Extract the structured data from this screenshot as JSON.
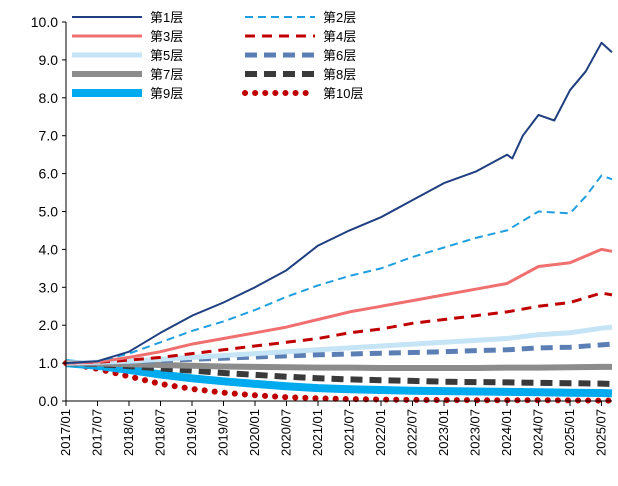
{
  "chart_data": {
    "type": "line",
    "title": "",
    "xlabel": "",
    "ylabel": "",
    "ylim": [
      0,
      10
    ],
    "y_ticks": [
      "0.0",
      "1.0",
      "2.0",
      "3.0",
      "4.0",
      "5.0",
      "6.0",
      "7.0",
      "8.0",
      "9.0",
      "10.0"
    ],
    "x_ticks": [
      "2017/01",
      "2017/07",
      "2018/01",
      "2018/07",
      "2019/01",
      "2019/07",
      "2020/01",
      "2020/07",
      "2021/01",
      "2021/07",
      "2022/01",
      "2022/07",
      "2023/01",
      "2023/07",
      "2024/01",
      "2024/07",
      "2025/01",
      "2025/07"
    ],
    "x_start": "2017/01",
    "x_end": "2025/09",
    "legend_position": "top-left, two columns",
    "grid": false,
    "series": [
      {
        "name": "第1层",
        "color": "#1f3f80",
        "dash": "solid",
        "width": 2,
        "points": [
          [
            "2017/01",
            1.0
          ],
          [
            "2017/07",
            1.05
          ],
          [
            "2018/01",
            1.3
          ],
          [
            "2018/07",
            1.8
          ],
          [
            "2019/01",
            2.25
          ],
          [
            "2019/07",
            2.6
          ],
          [
            "2020/01",
            3.0
          ],
          [
            "2020/07",
            3.45
          ],
          [
            "2021/01",
            4.1
          ],
          [
            "2021/07",
            4.5
          ],
          [
            "2022/01",
            4.85
          ],
          [
            "2022/07",
            5.3
          ],
          [
            "2023/01",
            5.75
          ],
          [
            "2023/07",
            6.05
          ],
          [
            "2024/01",
            6.5
          ],
          [
            "2024/02",
            6.4
          ],
          [
            "2024/04",
            7.0
          ],
          [
            "2024/07",
            7.55
          ],
          [
            "2024/10",
            7.4
          ],
          [
            "2025/01",
            8.2
          ],
          [
            "2025/04",
            8.7
          ],
          [
            "2025/07",
            9.45
          ],
          [
            "2025/09",
            9.2
          ]
        ]
      },
      {
        "name": "第2层",
        "color": "#1f9fe0",
        "dash": "8,5",
        "width": 2,
        "points": [
          [
            "2017/01",
            1.0
          ],
          [
            "2017/07",
            1.05
          ],
          [
            "2018/01",
            1.25
          ],
          [
            "2018/07",
            1.55
          ],
          [
            "2019/01",
            1.85
          ],
          [
            "2019/07",
            2.1
          ],
          [
            "2020/01",
            2.4
          ],
          [
            "2020/07",
            2.75
          ],
          [
            "2021/01",
            3.05
          ],
          [
            "2021/07",
            3.3
          ],
          [
            "2022/01",
            3.5
          ],
          [
            "2022/07",
            3.8
          ],
          [
            "2023/01",
            4.05
          ],
          [
            "2023/07",
            4.3
          ],
          [
            "2024/01",
            4.5
          ],
          [
            "2024/07",
            5.0
          ],
          [
            "2025/01",
            4.95
          ],
          [
            "2025/04",
            5.4
          ],
          [
            "2025/07",
            5.95
          ],
          [
            "2025/09",
            5.85
          ]
        ]
      },
      {
        "name": "第3层",
        "color": "#f07070",
        "dash": "solid",
        "width": 3,
        "points": [
          [
            "2017/01",
            1.0
          ],
          [
            "2017/07",
            1.03
          ],
          [
            "2018/01",
            1.15
          ],
          [
            "2018/07",
            1.3
          ],
          [
            "2019/01",
            1.5
          ],
          [
            "2019/07",
            1.65
          ],
          [
            "2020/01",
            1.8
          ],
          [
            "2020/07",
            1.95
          ],
          [
            "2021/01",
            2.15
          ],
          [
            "2021/07",
            2.35
          ],
          [
            "2022/01",
            2.5
          ],
          [
            "2022/07",
            2.65
          ],
          [
            "2023/01",
            2.8
          ],
          [
            "2023/07",
            2.95
          ],
          [
            "2024/01",
            3.1
          ],
          [
            "2024/07",
            3.55
          ],
          [
            "2025/01",
            3.65
          ],
          [
            "2025/07",
            4.0
          ],
          [
            "2025/09",
            3.95
          ]
        ]
      },
      {
        "name": "第4层",
        "color": "#c00000",
        "dash": "10,7",
        "width": 3,
        "points": [
          [
            "2017/01",
            1.0
          ],
          [
            "2017/07",
            1.02
          ],
          [
            "2018/01",
            1.08
          ],
          [
            "2018/07",
            1.15
          ],
          [
            "2019/01",
            1.25
          ],
          [
            "2019/07",
            1.35
          ],
          [
            "2020/01",
            1.45
          ],
          [
            "2020/07",
            1.55
          ],
          [
            "2021/01",
            1.65
          ],
          [
            "2021/07",
            1.8
          ],
          [
            "2022/01",
            1.9
          ],
          [
            "2022/07",
            2.05
          ],
          [
            "2023/01",
            2.15
          ],
          [
            "2023/07",
            2.25
          ],
          [
            "2024/01",
            2.35
          ],
          [
            "2024/07",
            2.5
          ],
          [
            "2025/01",
            2.6
          ],
          [
            "2025/07",
            2.85
          ],
          [
            "2025/09",
            2.8
          ]
        ]
      },
      {
        "name": "第5层",
        "color": "#c5e4f5",
        "dash": "solid",
        "width": 5,
        "points": [
          [
            "2017/01",
            1.0
          ],
          [
            "2017/07",
            1.02
          ],
          [
            "2018/01",
            1.05
          ],
          [
            "2018/07",
            1.1
          ],
          [
            "2019/01",
            1.15
          ],
          [
            "2019/07",
            1.2
          ],
          [
            "2020/01",
            1.25
          ],
          [
            "2020/07",
            1.3
          ],
          [
            "2021/01",
            1.35
          ],
          [
            "2021/07",
            1.4
          ],
          [
            "2022/01",
            1.45
          ],
          [
            "2022/07",
            1.5
          ],
          [
            "2023/01",
            1.55
          ],
          [
            "2023/07",
            1.6
          ],
          [
            "2024/01",
            1.65
          ],
          [
            "2024/07",
            1.75
          ],
          [
            "2025/01",
            1.8
          ],
          [
            "2025/07",
            1.92
          ],
          [
            "2025/09",
            1.95
          ]
        ]
      },
      {
        "name": "第6层",
        "color": "#5b7fb5",
        "dash": "12,7",
        "width": 5,
        "points": [
          [
            "2017/01",
            1.0
          ],
          [
            "2017/07",
            1.01
          ],
          [
            "2018/01",
            1.04
          ],
          [
            "2018/07",
            1.07
          ],
          [
            "2019/01",
            1.1
          ],
          [
            "2019/07",
            1.13
          ],
          [
            "2020/01",
            1.16
          ],
          [
            "2020/07",
            1.19
          ],
          [
            "2021/01",
            1.22
          ],
          [
            "2021/07",
            1.24
          ],
          [
            "2022/01",
            1.26
          ],
          [
            "2022/07",
            1.28
          ],
          [
            "2023/01",
            1.3
          ],
          [
            "2023/07",
            1.33
          ],
          [
            "2024/01",
            1.35
          ],
          [
            "2024/07",
            1.4
          ],
          [
            "2025/01",
            1.42
          ],
          [
            "2025/07",
            1.48
          ],
          [
            "2025/09",
            1.5
          ]
        ]
      },
      {
        "name": "第7层",
        "color": "#8c8c8c",
        "dash": "solid",
        "width": 6,
        "points": [
          [
            "2017/01",
            1.0
          ],
          [
            "2017/07",
            0.99
          ],
          [
            "2018/01",
            0.97
          ],
          [
            "2018/07",
            0.95
          ],
          [
            "2019/01",
            0.93
          ],
          [
            "2019/07",
            0.91
          ],
          [
            "2020/01",
            0.9
          ],
          [
            "2020/07",
            0.89
          ],
          [
            "2021/01",
            0.88
          ],
          [
            "2021/07",
            0.88
          ],
          [
            "2022/01",
            0.87
          ],
          [
            "2022/07",
            0.87
          ],
          [
            "2023/01",
            0.87
          ],
          [
            "2023/07",
            0.87
          ],
          [
            "2024/01",
            0.88
          ],
          [
            "2024/07",
            0.88
          ],
          [
            "2025/01",
            0.89
          ],
          [
            "2025/07",
            0.9
          ],
          [
            "2025/09",
            0.9
          ]
        ]
      },
      {
        "name": "第8层",
        "color": "#3a3a3a",
        "dash": "12,7",
        "width": 6,
        "points": [
          [
            "2017/01",
            1.0
          ],
          [
            "2017/07",
            0.97
          ],
          [
            "2018/01",
            0.92
          ],
          [
            "2018/07",
            0.86
          ],
          [
            "2019/01",
            0.8
          ],
          [
            "2019/07",
            0.74
          ],
          [
            "2020/01",
            0.69
          ],
          [
            "2020/07",
            0.64
          ],
          [
            "2021/01",
            0.6
          ],
          [
            "2021/07",
            0.57
          ],
          [
            "2022/01",
            0.55
          ],
          [
            "2022/07",
            0.53
          ],
          [
            "2023/01",
            0.51
          ],
          [
            "2023/07",
            0.5
          ],
          [
            "2024/01",
            0.49
          ],
          [
            "2024/07",
            0.48
          ],
          [
            "2025/01",
            0.47
          ],
          [
            "2025/07",
            0.46
          ],
          [
            "2025/09",
            0.45
          ]
        ]
      },
      {
        "name": "第9层",
        "color": "#00aaee",
        "dash": "solid",
        "width": 8,
        "points": [
          [
            "2017/01",
            1.0
          ],
          [
            "2017/07",
            0.93
          ],
          [
            "2018/01",
            0.82
          ],
          [
            "2018/07",
            0.7
          ],
          [
            "2019/01",
            0.6
          ],
          [
            "2019/07",
            0.52
          ],
          [
            "2020/01",
            0.45
          ],
          [
            "2020/07",
            0.39
          ],
          [
            "2021/01",
            0.34
          ],
          [
            "2021/07",
            0.31
          ],
          [
            "2022/01",
            0.29
          ],
          [
            "2022/07",
            0.27
          ],
          [
            "2023/01",
            0.26
          ],
          [
            "2023/07",
            0.25
          ],
          [
            "2024/01",
            0.24
          ],
          [
            "2024/07",
            0.23
          ],
          [
            "2025/01",
            0.22
          ],
          [
            "2025/07",
            0.21
          ],
          [
            "2025/09",
            0.2
          ]
        ]
      },
      {
        "name": "第10层",
        "color": "#c00000",
        "dash": "0.1,10",
        "width": 6,
        "points": [
          [
            "2017/01",
            1.0
          ],
          [
            "2017/07",
            0.85
          ],
          [
            "2018/01",
            0.65
          ],
          [
            "2018/07",
            0.45
          ],
          [
            "2019/01",
            0.32
          ],
          [
            "2019/07",
            0.22
          ],
          [
            "2020/01",
            0.15
          ],
          [
            "2020/07",
            0.1
          ],
          [
            "2021/01",
            0.07
          ],
          [
            "2021/07",
            0.05
          ],
          [
            "2022/01",
            0.04
          ],
          [
            "2022/07",
            0.03
          ],
          [
            "2023/01",
            0.025
          ],
          [
            "2023/07",
            0.02
          ],
          [
            "2024/01",
            0.02
          ],
          [
            "2024/07",
            0.02
          ],
          [
            "2025/01",
            0.015
          ],
          [
            "2025/07",
            0.01
          ],
          [
            "2025/09",
            0.01
          ]
        ]
      }
    ]
  }
}
